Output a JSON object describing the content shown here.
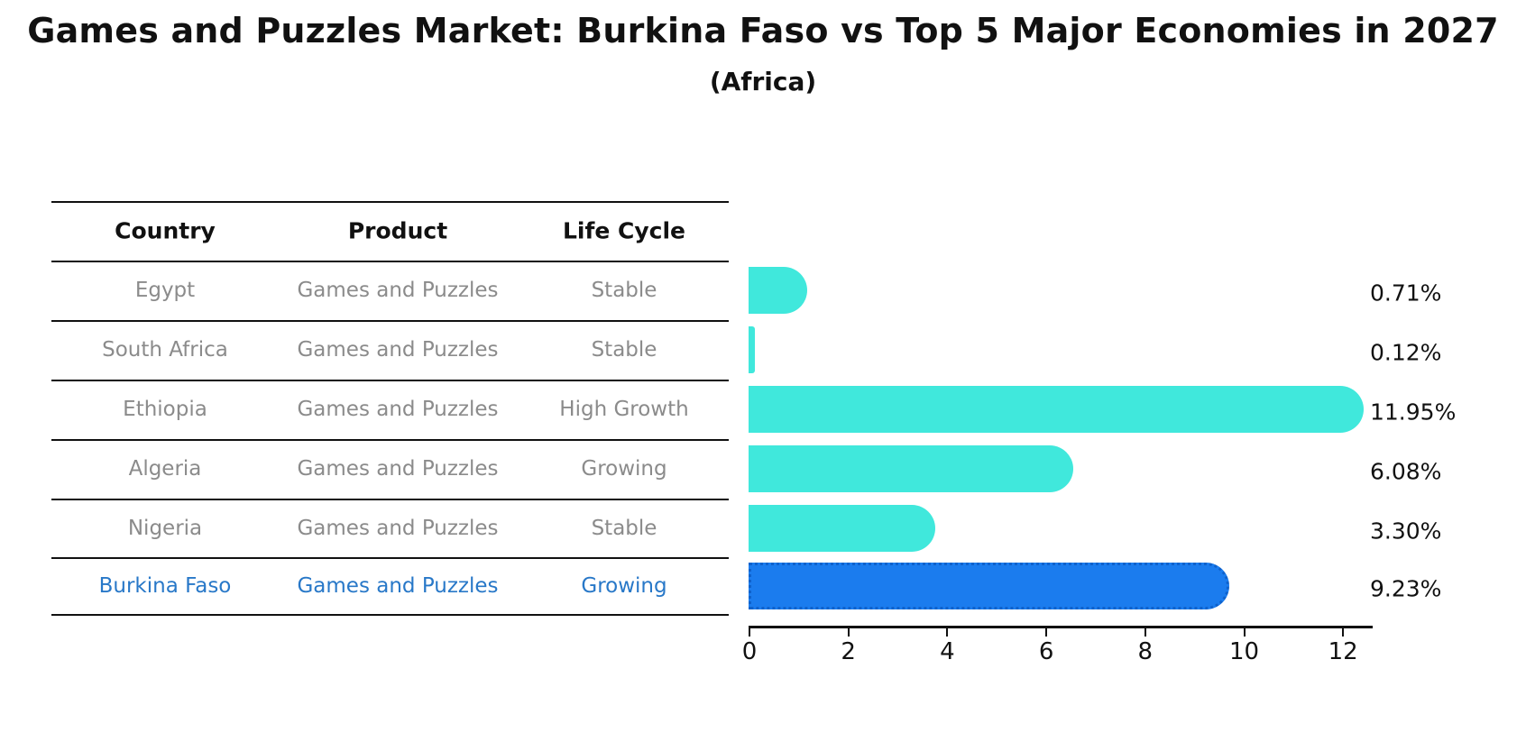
{
  "title": "Games and Puzzles Market: Burkina Faso vs Top 5 Major Economies in 2027",
  "subtitle": "(Africa)",
  "table": {
    "headers": [
      "Country",
      "Product",
      "Life Cycle"
    ],
    "rows": [
      {
        "country": "Egypt",
        "product": "Games and Puzzles",
        "life_cycle": "Stable",
        "highlighted": false
      },
      {
        "country": "South Africa",
        "product": "Games and Puzzles",
        "life_cycle": "Stable",
        "highlighted": false
      },
      {
        "country": "Ethiopia",
        "product": "Games and Puzzles",
        "life_cycle": "High Growth",
        "highlighted": false
      },
      {
        "country": "Algeria",
        "product": "Games and Puzzles",
        "life_cycle": "Growing",
        "highlighted": false
      },
      {
        "country": "Nigeria",
        "product": "Games and Puzzles",
        "life_cycle": "Stable",
        "highlighted": false
      },
      {
        "country": "Burkina Faso",
        "product": "Games and Puzzles",
        "life_cycle": "Growing",
        "highlighted": true
      }
    ]
  },
  "chart_data": {
    "type": "bar",
    "orientation": "horizontal",
    "title": "Games and Puzzles Market: Burkina Faso vs Top 5 Major Economies in 2027",
    "subtitle": "(Africa)",
    "categories": [
      "Egypt",
      "South Africa",
      "Ethiopia",
      "Algeria",
      "Nigeria",
      "Burkina Faso"
    ],
    "values": [
      0.71,
      0.12,
      11.95,
      6.08,
      3.3,
      9.23
    ],
    "bar_labels": [
      "0.71%",
      "0.12%",
      "11.95%",
      "6.08%",
      "3.30%",
      "9.23%"
    ],
    "x_ticks": [
      0,
      2,
      4,
      6,
      8,
      10,
      12
    ],
    "xlim": [
      0,
      12.6
    ],
    "grid": false,
    "legend": false,
    "bar_color": "#40e8dc",
    "highlight_bar_color": "#1b7cee",
    "highlight_border_color": "#0f62cc",
    "highlight_text_color": "#2878c8",
    "highlight_index": 5
  }
}
